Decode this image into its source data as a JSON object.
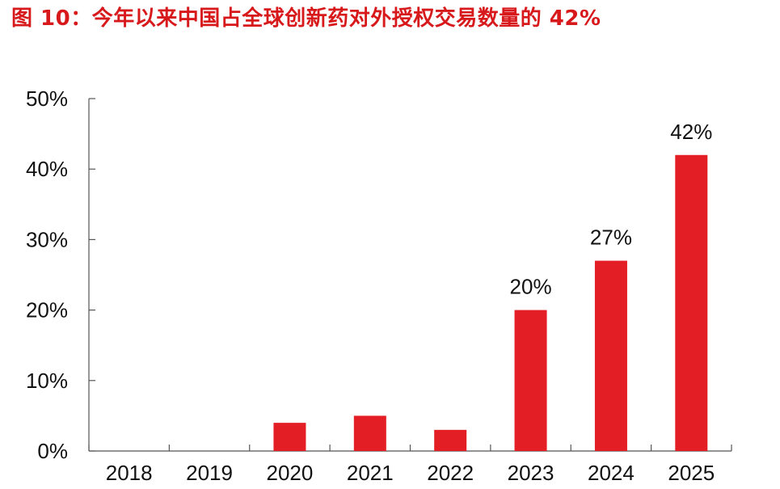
{
  "figure": {
    "title": "图 10：今年以来中国占全球创新药对外授权交易数量的 42%"
  },
  "colors": {
    "title": "#d7191c",
    "bar": "#e31e24",
    "axis": "#555555",
    "text": "#111111"
  },
  "chart_data": {
    "type": "bar",
    "title": "",
    "xlabel": "",
    "ylabel": "",
    "categories": [
      "2018",
      "2019",
      "2020",
      "2021",
      "2022",
      "2023",
      "2024",
      "2025"
    ],
    "values": [
      0,
      0,
      4,
      5,
      3,
      20,
      27,
      42
    ],
    "value_unit": "%",
    "data_labels": [
      {
        "category": "2023",
        "text": "20%"
      },
      {
        "category": "2024",
        "text": "27%"
      },
      {
        "category": "2025",
        "text": "42%"
      }
    ],
    "ylim": [
      0,
      50
    ],
    "yticks": [
      0,
      10,
      20,
      30,
      40,
      50
    ],
    "ytick_labels": [
      "0%",
      "10%",
      "20%",
      "30%",
      "40%",
      "50%"
    ],
    "grid": false,
    "legend": "none"
  }
}
